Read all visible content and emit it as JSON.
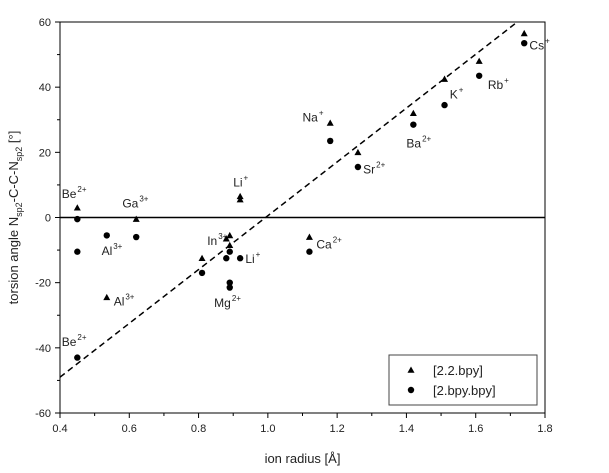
{
  "chart_data": {
    "type": "scatter",
    "title": "",
    "xlabel": "ion radius [Å]",
    "ylabel": {
      "base": "torsion angle N",
      "sub1": "sp2",
      "mid": "-C-C-N",
      "sub2": "sp2",
      "end": " [°]"
    },
    "xlim": [
      0.4,
      1.8
    ],
    "ylim": [
      -60,
      60
    ],
    "xticks": [
      0.4,
      0.6,
      0.8,
      1.0,
      1.2,
      1.4,
      1.6,
      1.8
    ],
    "xtick_labels": [
      "0.4",
      "0.6",
      "0.8",
      "1.0",
      "1.2",
      "1.4",
      "1.6",
      "1.8"
    ],
    "yticks": [
      -60,
      -40,
      -20,
      0,
      20,
      40,
      60
    ],
    "ytick_labels": [
      "-60",
      "-40",
      "-20",
      "0",
      "20",
      "40",
      "60"
    ],
    "zero_line": 0,
    "grid": false,
    "legend_position": "bottom-right",
    "series": [
      {
        "name": "[2.2.bpy]",
        "marker": "triangle",
        "points": [
          {
            "x": 0.45,
            "y": 3
          },
          {
            "x": 0.535,
            "y": -24.5
          },
          {
            "x": 0.62,
            "y": -0.5
          },
          {
            "x": 0.81,
            "y": -12.5
          },
          {
            "x": 0.88,
            "y": -6.5
          },
          {
            "x": 0.89,
            "y": -5.5
          },
          {
            "x": 0.89,
            "y": -8.5
          },
          {
            "x": 0.92,
            "y": 5.5
          },
          {
            "x": 0.92,
            "y": 6.5
          },
          {
            "x": 1.12,
            "y": -6
          },
          {
            "x": 1.18,
            "y": 29
          },
          {
            "x": 1.26,
            "y": 20
          },
          {
            "x": 1.42,
            "y": 32
          },
          {
            "x": 1.51,
            "y": 42.5
          },
          {
            "x": 1.61,
            "y": 48
          },
          {
            "x": 1.74,
            "y": 56.5
          }
        ]
      },
      {
        "name": "[2.bpy.bpy]",
        "marker": "circle",
        "points": [
          {
            "x": 0.45,
            "y": -0.5
          },
          {
            "x": 0.45,
            "y": -10.5
          },
          {
            "x": 0.45,
            "y": -43
          },
          {
            "x": 0.535,
            "y": -5.5
          },
          {
            "x": 0.62,
            "y": -6
          },
          {
            "x": 0.81,
            "y": -17
          },
          {
            "x": 0.88,
            "y": -12.5
          },
          {
            "x": 0.89,
            "y": -10.5
          },
          {
            "x": 0.89,
            "y": -20
          },
          {
            "x": 0.89,
            "y": -21.5
          },
          {
            "x": 0.92,
            "y": -12.5
          },
          {
            "x": 1.12,
            "y": -10.5
          },
          {
            "x": 1.18,
            "y": 23.5
          },
          {
            "x": 1.26,
            "y": 15.5
          },
          {
            "x": 1.42,
            "y": 28.5
          },
          {
            "x": 1.51,
            "y": 34.5
          },
          {
            "x": 1.61,
            "y": 43.5
          },
          {
            "x": 1.74,
            "y": 53.5
          }
        ]
      }
    ],
    "trend_line": {
      "style": "dashed",
      "x": [
        0.4,
        1.72
      ],
      "y": [
        -49,
        60
      ]
    },
    "annotations": [
      {
        "name": "annotation-be2-upper",
        "base": "Be",
        "sup": "2+",
        "x": 0.405,
        "y": 6
      },
      {
        "name": "annotation-ga3",
        "base": "Ga",
        "sup": "3+",
        "x": 0.58,
        "y": 3
      },
      {
        "name": "annotation-al3-upper",
        "base": "Al",
        "sup": "3+",
        "x": 0.52,
        "y": -11.5
      },
      {
        "name": "annotation-al3-lower",
        "base": "Al",
        "sup": "3+",
        "x": 0.555,
        "y": -27
      },
      {
        "name": "annotation-be2-lower",
        "base": "Be",
        "sup": "2+",
        "x": 0.405,
        "y": -39.5
      },
      {
        "name": "annotation-li-upper",
        "base": "Li",
        "sup": "+",
        "x": 0.9,
        "y": 9.5
      },
      {
        "name": "annotation-in3",
        "base": "In",
        "sup": "3+",
        "x": 0.825,
        "y": -8.5
      },
      {
        "name": "annotation-li-lower",
        "base": "Li",
        "sup": "+",
        "x": 0.935,
        "y": -14
      },
      {
        "name": "annotation-mg2",
        "base": "Mg",
        "sup": "2+",
        "x": 0.845,
        "y": -27.5
      },
      {
        "name": "annotation-ca2",
        "base": "Ca",
        "sup": "2+",
        "x": 1.14,
        "y": -9.5
      },
      {
        "name": "annotation-na",
        "base": "Na",
        "sup": "+",
        "x": 1.1,
        "y": 29.5
      },
      {
        "name": "annotation-sr2",
        "base": "Sr",
        "sup": "2+",
        "x": 1.275,
        "y": 13.5
      },
      {
        "name": "annotation-ba2",
        "base": "Ba",
        "sup": "2+",
        "x": 1.4,
        "y": 21.5
      },
      {
        "name": "annotation-k",
        "base": "K",
        "sup": "+",
        "x": 1.525,
        "y": 36.5
      },
      {
        "name": "annotation-rb",
        "base": "Rb",
        "sup": "+",
        "x": 1.635,
        "y": 39.5
      },
      {
        "name": "annotation-cs",
        "base": "Cs",
        "sup": "+",
        "x": 1.755,
        "y": 51.5
      }
    ]
  }
}
